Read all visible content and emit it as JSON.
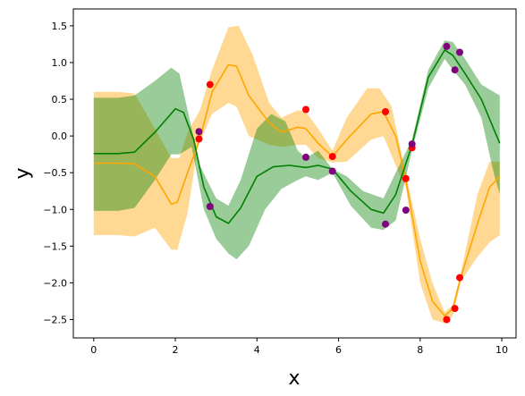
{
  "chart_data": {
    "type": "line",
    "title": "",
    "xlabel": "x",
    "ylabel": "y",
    "xlim": [
      -0.5,
      10.35
    ],
    "ylim": [
      -2.75,
      1.73
    ],
    "grid": false,
    "legend": "none",
    "x_ticks": [
      "0",
      "2",
      "4",
      "6",
      "8",
      "10"
    ],
    "y_ticks": [
      "1.5",
      "1.0",
      "0.5",
      "0.0",
      "−0.5",
      "−1.0",
      "−1.5",
      "−2.0",
      "−2.5"
    ],
    "colors": {
      "orange": "#FFA500",
      "green": "#008000",
      "red": "#FF0000",
      "purple": "#800080"
    },
    "series": [
      {
        "color": "orange",
        "mean": [
          [
            0,
            -0.37
          ],
          [
            0.6,
            -0.37
          ],
          [
            1.0,
            -0.38
          ],
          [
            1.5,
            -0.55
          ],
          [
            1.9,
            -0.93
          ],
          [
            2.05,
            -0.9
          ],
          [
            2.3,
            -0.5
          ],
          [
            2.6,
            -0.05
          ],
          [
            2.9,
            0.6
          ],
          [
            3.3,
            0.97
          ],
          [
            3.5,
            0.95
          ],
          [
            3.8,
            0.55
          ],
          [
            4.3,
            0.18
          ],
          [
            4.6,
            0.05
          ],
          [
            5.0,
            0.12
          ],
          [
            5.2,
            0.1
          ],
          [
            5.5,
            -0.1
          ],
          [
            5.85,
            -0.28
          ],
          [
            6.2,
            -0.05
          ],
          [
            6.8,
            0.3
          ],
          [
            7.1,
            0.33
          ],
          [
            7.4,
            0.0
          ],
          [
            7.65,
            -0.6
          ],
          [
            8.0,
            -1.7
          ],
          [
            8.3,
            -2.25
          ],
          [
            8.6,
            -2.45
          ],
          [
            8.8,
            -2.35
          ],
          [
            9.0,
            -1.92
          ],
          [
            9.4,
            -1.2
          ],
          [
            9.7,
            -0.7
          ],
          [
            9.95,
            -0.55
          ]
        ],
        "upper": [
          [
            0,
            0.6
          ],
          [
            0.6,
            0.6
          ],
          [
            1.0,
            0.58
          ],
          [
            1.5,
            0.1
          ],
          [
            1.9,
            -0.3
          ],
          [
            2.1,
            -0.3
          ],
          [
            2.3,
            0.05
          ],
          [
            2.6,
            0.35
          ],
          [
            2.9,
            0.9
          ],
          [
            3.3,
            1.48
          ],
          [
            3.55,
            1.5
          ],
          [
            3.9,
            1.1
          ],
          [
            4.3,
            0.45
          ],
          [
            4.6,
            0.25
          ],
          [
            5.0,
            0.35
          ],
          [
            5.2,
            0.33
          ],
          [
            5.5,
            0.1
          ],
          [
            5.85,
            -0.2
          ],
          [
            6.2,
            0.25
          ],
          [
            6.7,
            0.65
          ],
          [
            7.0,
            0.65
          ],
          [
            7.3,
            0.4
          ],
          [
            7.65,
            -0.52
          ],
          [
            8.0,
            -1.4
          ],
          [
            8.3,
            -2.0
          ],
          [
            8.6,
            -2.4
          ],
          [
            8.8,
            -2.3
          ],
          [
            9.0,
            -1.85
          ],
          [
            9.4,
            -0.8
          ],
          [
            9.7,
            -0.35
          ],
          [
            9.95,
            -0.35
          ]
        ],
        "lower": [
          [
            0,
            -1.35
          ],
          [
            0.6,
            -1.35
          ],
          [
            1.0,
            -1.37
          ],
          [
            1.5,
            -1.25
          ],
          [
            1.9,
            -1.55
          ],
          [
            2.05,
            -1.55
          ],
          [
            2.3,
            -1.05
          ],
          [
            2.55,
            -0.15
          ],
          [
            2.9,
            0.3
          ],
          [
            3.3,
            0.45
          ],
          [
            3.5,
            0.4
          ],
          [
            3.8,
            0.0
          ],
          [
            4.3,
            -0.12
          ],
          [
            4.6,
            -0.15
          ],
          [
            5.0,
            -0.12
          ],
          [
            5.2,
            -0.12
          ],
          [
            5.5,
            -0.3
          ],
          [
            5.85,
            -0.36
          ],
          [
            6.2,
            -0.35
          ],
          [
            6.8,
            -0.05
          ],
          [
            7.1,
            0.0
          ],
          [
            7.4,
            -0.4
          ],
          [
            7.65,
            -0.7
          ],
          [
            8.0,
            -2.0
          ],
          [
            8.3,
            -2.5
          ],
          [
            8.6,
            -2.55
          ],
          [
            8.8,
            -2.45
          ],
          [
            9.0,
            -1.98
          ],
          [
            9.4,
            -1.65
          ],
          [
            9.7,
            -1.45
          ],
          [
            9.95,
            -1.35
          ]
        ],
        "points": [
          [
            2.58,
            -0.04
          ],
          [
            2.85,
            0.7
          ],
          [
            5.2,
            0.36
          ],
          [
            5.85,
            -0.28
          ],
          [
            7.15,
            0.33
          ],
          [
            7.65,
            -0.58
          ],
          [
            7.8,
            -0.16
          ],
          [
            8.65,
            -2.5
          ],
          [
            8.85,
            -2.35
          ],
          [
            8.97,
            -1.93
          ]
        ]
      },
      {
        "color": "green",
        "mean": [
          [
            0,
            -0.24
          ],
          [
            0.6,
            -0.24
          ],
          [
            1.0,
            -0.22
          ],
          [
            1.5,
            0.05
          ],
          [
            2.0,
            0.37
          ],
          [
            2.2,
            0.32
          ],
          [
            2.45,
            -0.05
          ],
          [
            2.7,
            -0.7
          ],
          [
            3.0,
            -1.1
          ],
          [
            3.3,
            -1.19
          ],
          [
            3.6,
            -0.98
          ],
          [
            4.0,
            -0.55
          ],
          [
            4.4,
            -0.42
          ],
          [
            4.8,
            -0.4
          ],
          [
            5.2,
            -0.43
          ],
          [
            5.5,
            -0.4
          ],
          [
            5.85,
            -0.45
          ],
          [
            6.3,
            -0.75
          ],
          [
            6.8,
            -1.0
          ],
          [
            7.1,
            -1.05
          ],
          [
            7.4,
            -0.8
          ],
          [
            7.8,
            -0.12
          ],
          [
            8.2,
            0.8
          ],
          [
            8.6,
            1.17
          ],
          [
            8.8,
            1.1
          ],
          [
            9.1,
            0.85
          ],
          [
            9.5,
            0.5
          ],
          [
            9.8,
            0.1
          ],
          [
            9.95,
            -0.1
          ]
        ],
        "upper": [
          [
            0,
            0.52
          ],
          [
            0.6,
            0.52
          ],
          [
            1.0,
            0.55
          ],
          [
            1.5,
            0.75
          ],
          [
            1.9,
            0.93
          ],
          [
            2.1,
            0.85
          ],
          [
            2.4,
            0.1
          ],
          [
            2.6,
            -0.4
          ],
          [
            3.0,
            -0.85
          ],
          [
            3.3,
            -0.95
          ],
          [
            3.6,
            -0.6
          ],
          [
            4.0,
            0.1
          ],
          [
            4.35,
            0.3
          ],
          [
            4.7,
            0.2
          ],
          [
            5.0,
            -0.2
          ],
          [
            5.2,
            -0.3
          ],
          [
            5.5,
            -0.2
          ],
          [
            5.85,
            -0.45
          ],
          [
            6.2,
            -0.55
          ],
          [
            6.6,
            -0.75
          ],
          [
            7.1,
            -0.85
          ],
          [
            7.4,
            -0.5
          ],
          [
            7.8,
            -0.05
          ],
          [
            8.2,
            0.9
          ],
          [
            8.6,
            1.3
          ],
          [
            8.8,
            1.28
          ],
          [
            9.1,
            1.05
          ],
          [
            9.5,
            0.7
          ],
          [
            9.8,
            0.6
          ],
          [
            9.95,
            0.55
          ]
        ],
        "lower": [
          [
            0,
            -1.02
          ],
          [
            0.6,
            -1.02
          ],
          [
            1.0,
            -0.98
          ],
          [
            1.5,
            -0.6
          ],
          [
            1.9,
            -0.25
          ],
          [
            2.1,
            -0.25
          ],
          [
            2.4,
            -0.15
          ],
          [
            2.7,
            -1.0
          ],
          [
            3.0,
            -1.4
          ],
          [
            3.3,
            -1.6
          ],
          [
            3.5,
            -1.68
          ],
          [
            3.8,
            -1.5
          ],
          [
            4.2,
            -1.0
          ],
          [
            4.6,
            -0.72
          ],
          [
            5.0,
            -0.6
          ],
          [
            5.2,
            -0.55
          ],
          [
            5.5,
            -0.6
          ],
          [
            5.85,
            -0.5
          ],
          [
            6.3,
            -0.95
          ],
          [
            6.8,
            -1.25
          ],
          [
            7.1,
            -1.28
          ],
          [
            7.4,
            -1.15
          ],
          [
            7.8,
            -0.2
          ],
          [
            8.2,
            0.65
          ],
          [
            8.6,
            1.05
          ],
          [
            8.8,
            0.9
          ],
          [
            9.1,
            0.7
          ],
          [
            9.5,
            0.25
          ],
          [
            9.8,
            -0.5
          ],
          [
            9.95,
            -0.8
          ]
        ],
        "points": [
          [
            2.58,
            0.06
          ],
          [
            2.85,
            -0.96
          ],
          [
            5.2,
            -0.29
          ],
          [
            5.85,
            -0.48
          ],
          [
            7.15,
            -1.2
          ],
          [
            7.65,
            -1.01
          ],
          [
            7.8,
            -0.11
          ],
          [
            8.65,
            1.22
          ],
          [
            8.85,
            0.9
          ],
          [
            8.97,
            1.14
          ]
        ]
      }
    ]
  }
}
